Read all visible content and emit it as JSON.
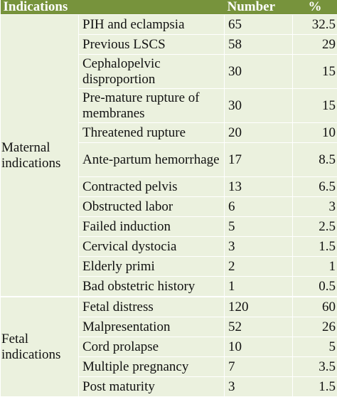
{
  "header": {
    "indications": "Indications",
    "number": "Number",
    "percent": "%"
  },
  "groups": [
    {
      "name": "Maternal indications",
      "rows": [
        {
          "indication": "PIH and eclampsia",
          "number": "65",
          "percent": "32.5"
        },
        {
          "indication": "Previous LSCS",
          "number": "58",
          "percent": "29"
        },
        {
          "indication": "Cephalopelvic disproportion",
          "number": "30",
          "percent": "15"
        },
        {
          "indication": "Pre-mature rupture of membranes",
          "number": "30",
          "percent": "15"
        },
        {
          "indication": "Threatened rupture",
          "number": "20",
          "percent": "10"
        },
        {
          "indication": "Ante-partum hemorrhage",
          "number": "17",
          "percent": "8.5"
        },
        {
          "indication": "Contracted pelvis",
          "number": "13",
          "percent": "6.5"
        },
        {
          "indication": "Obstructed labor",
          "number": "6",
          "percent": "3"
        },
        {
          "indication": "Failed induction",
          "number": "5",
          "percent": "2.5"
        },
        {
          "indication": "Cervical dystocia",
          "number": "3",
          "percent": "1.5"
        },
        {
          "indication": "Elderly primi",
          "number": "2",
          "percent": "1"
        },
        {
          "indication": "Bad obstetric history",
          "number": "1",
          "percent": "0.5"
        }
      ]
    },
    {
      "name": "Fetal indications",
      "rows": [
        {
          "indication": "Fetal distress",
          "number": "120",
          "percent": "60"
        },
        {
          "indication": "Malpresentation",
          "number": "52",
          "percent": "26"
        },
        {
          "indication": "Cord prolapse",
          "number": "10",
          "percent": "5"
        },
        {
          "indication": "Multiple pregnancy",
          "number": "7",
          "percent": "3.5"
        },
        {
          "indication": "Post maturity",
          "number": "3",
          "percent": "1.5"
        }
      ]
    }
  ]
}
